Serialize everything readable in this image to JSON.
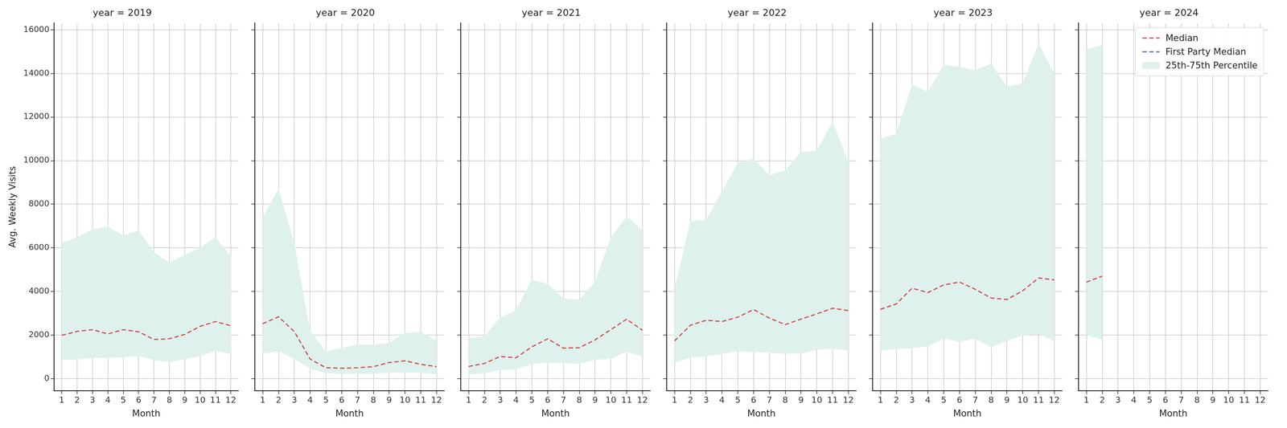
{
  "chart_data": [
    {
      "type": "line",
      "title": "year = 2019",
      "xlabel": "Month",
      "ylabel": "Avg. Weekly Visits",
      "x": [
        1,
        2,
        3,
        4,
        5,
        6,
        7,
        8,
        9,
        10,
        11,
        12
      ],
      "xlim": [
        0.5,
        12.5
      ],
      "xticks": [
        1,
        2,
        3,
        4,
        5,
        6,
        7,
        8,
        9,
        10,
        11,
        12
      ],
      "ylim": [
        -550,
        16300
      ],
      "yticks": [
        0,
        2000,
        4000,
        6000,
        8000,
        10000,
        12000,
        14000,
        16000
      ],
      "grid": true,
      "series": [
        {
          "name": "Median",
          "type": "line",
          "color": "#cc4444",
          "line_style": "dashed",
          "values": [
            1990,
            2170,
            2250,
            2050,
            2250,
            2150,
            1800,
            1830,
            2030,
            2400,
            2620,
            2430
          ]
        },
        {
          "name": "First Party Median",
          "type": "line",
          "color": "#4c5fbf",
          "line_style": "dashed",
          "values": [
            null,
            null,
            null,
            null,
            null,
            null,
            null,
            null,
            null,
            null,
            null,
            null
          ]
        },
        {
          "name": "25th-75th Percentile",
          "type": "area",
          "color": "#dff1ec",
          "lower": [
            870,
            880,
            950,
            960,
            980,
            1050,
            850,
            760,
            900,
            1030,
            1280,
            1130
          ],
          "upper": [
            6230,
            6500,
            6850,
            6980,
            6560,
            6800,
            5800,
            5320,
            5680,
            6000,
            6500,
            5600
          ]
        }
      ]
    },
    {
      "type": "line",
      "title": "year = 2020",
      "xlabel": "Month",
      "tick_labels": "x",
      "x": [
        1,
        2,
        3,
        4,
        5,
        6,
        7,
        8,
        9,
        10,
        11,
        12
      ],
      "xlim": [
        0.5,
        12.5
      ],
      "xticks": [
        1,
        2,
        3,
        4,
        5,
        6,
        7,
        8,
        9,
        10,
        11,
        12
      ],
      "ylim": [
        -550,
        16300
      ],
      "yticks": [
        0,
        2000,
        4000,
        6000,
        8000,
        10000,
        12000,
        14000,
        16000
      ],
      "grid": true,
      "series": [
        {
          "name": "Median",
          "type": "line",
          "color": "#cc4444",
          "line_style": "dashed",
          "values": [
            2520,
            2840,
            2160,
            900,
            500,
            480,
            500,
            550,
            740,
            820,
            660,
            550
          ]
        },
        {
          "name": "First Party Median",
          "type": "line",
          "color": "#4c5fbf",
          "line_style": "dashed",
          "values": [
            null,
            null,
            null,
            null,
            null,
            null,
            null,
            null,
            null,
            null,
            null,
            null
          ]
        },
        {
          "name": "25th-75th Percentile",
          "type": "area",
          "color": "#dff1ec",
          "lower": [
            1150,
            1250,
            920,
            450,
            250,
            220,
            220,
            230,
            270,
            290,
            270,
            200
          ],
          "upper": [
            7400,
            8700,
            6200,
            2200,
            1250,
            1400,
            1580,
            1550,
            1650,
            2100,
            2150,
            1750
          ]
        }
      ]
    },
    {
      "type": "line",
      "title": "year = 2021",
      "xlabel": "Month",
      "tick_labels": "x",
      "x": [
        1,
        2,
        3,
        4,
        5,
        6,
        7,
        8,
        9,
        10,
        11,
        12
      ],
      "xlim": [
        0.5,
        12.5
      ],
      "xticks": [
        1,
        2,
        3,
        4,
        5,
        6,
        7,
        8,
        9,
        10,
        11,
        12
      ],
      "ylim": [
        -550,
        16300
      ],
      "yticks": [
        0,
        2000,
        4000,
        6000,
        8000,
        10000,
        12000,
        14000,
        16000
      ],
      "grid": true,
      "series": [
        {
          "name": "Median",
          "type": "line",
          "color": "#cc4444",
          "line_style": "dashed",
          "values": [
            560,
            700,
            1020,
            960,
            1460,
            1830,
            1400,
            1420,
            1780,
            2250,
            2730,
            2220
          ]
        },
        {
          "name": "First Party Median",
          "type": "line",
          "color": "#4c5fbf",
          "line_style": "dashed",
          "values": [
            null,
            null,
            null,
            null,
            null,
            null,
            null,
            null,
            null,
            null,
            null,
            null
          ]
        },
        {
          "name": "25th-75th Percentile",
          "type": "area",
          "color": "#dff1ec",
          "lower": [
            200,
            240,
            400,
            430,
            680,
            720,
            720,
            680,
            860,
            920,
            1230,
            1030
          ],
          "upper": [
            1850,
            1950,
            2800,
            3150,
            4550,
            4350,
            3680,
            3620,
            4450,
            6480,
            7450,
            6800
          ]
        }
      ]
    },
    {
      "type": "line",
      "title": "year = 2022",
      "xlabel": "Month",
      "tick_labels": "x",
      "x": [
        1,
        2,
        3,
        4,
        5,
        6,
        7,
        8,
        9,
        10,
        11,
        12
      ],
      "xlim": [
        0.5,
        12.5
      ],
      "xticks": [
        1,
        2,
        3,
        4,
        5,
        6,
        7,
        8,
        9,
        10,
        11,
        12
      ],
      "ylim": [
        -550,
        16300
      ],
      "yticks": [
        0,
        2000,
        4000,
        6000,
        8000,
        10000,
        12000,
        14000,
        16000
      ],
      "grid": true,
      "series": [
        {
          "name": "Median",
          "type": "line",
          "color": "#cc4444",
          "line_style": "dashed",
          "values": [
            1730,
            2450,
            2680,
            2620,
            2820,
            3170,
            2780,
            2480,
            2730,
            2970,
            3230,
            3120
          ]
        },
        {
          "name": "First Party Median",
          "type": "line",
          "color": "#4c5fbf",
          "line_style": "dashed",
          "values": [
            null,
            null,
            null,
            null,
            null,
            null,
            null,
            null,
            null,
            null,
            null,
            null
          ]
        },
        {
          "name": "25th-75th Percentile",
          "type": "area",
          "color": "#dff1ec",
          "lower": [
            730,
            960,
            1030,
            1130,
            1250,
            1220,
            1200,
            1140,
            1160,
            1330,
            1380,
            1280
          ],
          "upper": [
            4150,
            7230,
            7280,
            8600,
            9900,
            10100,
            9330,
            9550,
            10400,
            10450,
            11800,
            9950
          ]
        }
      ]
    },
    {
      "type": "line",
      "title": "year = 2023",
      "xlabel": "Month",
      "tick_labels": "x",
      "x": [
        1,
        2,
        3,
        4,
        5,
        6,
        7,
        8,
        9,
        10,
        11,
        12
      ],
      "xlim": [
        0.5,
        12.5
      ],
      "xticks": [
        1,
        2,
        3,
        4,
        5,
        6,
        7,
        8,
        9,
        10,
        11,
        12
      ],
      "ylim": [
        -550,
        16300
      ],
      "yticks": [
        0,
        2000,
        4000,
        6000,
        8000,
        10000,
        12000,
        14000,
        16000
      ],
      "grid": true,
      "series": [
        {
          "name": "Median",
          "type": "line",
          "color": "#cc4444",
          "line_style": "dashed",
          "values": [
            3180,
            3430,
            4150,
            3950,
            4300,
            4430,
            4100,
            3700,
            3630,
            4030,
            4620,
            4530
          ]
        },
        {
          "name": "First Party Median",
          "type": "line",
          "color": "#4c5fbf",
          "line_style": "dashed",
          "values": [
            null,
            null,
            null,
            null,
            null,
            null,
            null,
            null,
            null,
            null,
            null,
            null
          ]
        },
        {
          "name": "25th-75th Percentile",
          "type": "area",
          "color": "#dff1ec",
          "lower": [
            1280,
            1360,
            1400,
            1480,
            1830,
            1700,
            1830,
            1450,
            1740,
            1980,
            2050,
            1720
          ],
          "upper": [
            11000,
            11250,
            13480,
            13150,
            14400,
            14300,
            14150,
            14450,
            13400,
            13550,
            15370,
            14000
          ]
        }
      ]
    },
    {
      "type": "line",
      "title": "year = 2024",
      "xlabel": "Month",
      "tick_labels": "x",
      "legend": "upper right",
      "x": [
        1,
        2,
        3,
        4,
        5,
        6,
        7,
        8,
        9,
        10,
        11,
        12
      ],
      "xlim": [
        0.5,
        12.5
      ],
      "xticks": [
        1,
        2,
        3,
        4,
        5,
        6,
        7,
        8,
        9,
        10,
        11,
        12
      ],
      "ylim": [
        -550,
        16300
      ],
      "yticks": [
        0,
        2000,
        4000,
        6000,
        8000,
        10000,
        12000,
        14000,
        16000
      ],
      "grid": true,
      "series": [
        {
          "name": "Median",
          "type": "line",
          "color": "#cc4444",
          "line_style": "dashed",
          "values": [
            4430,
            4700,
            null,
            null,
            null,
            null,
            null,
            null,
            null,
            null,
            null,
            null
          ]
        },
        {
          "name": "First Party Median",
          "type": "line",
          "color": "#4c5fbf",
          "line_style": "dashed",
          "values": [
            null,
            null,
            null,
            null,
            null,
            null,
            null,
            null,
            null,
            null,
            null,
            null
          ]
        },
        {
          "name": "25th-75th Percentile",
          "type": "area",
          "color": "#dff1ec",
          "lower": [
            2000,
            1800,
            null,
            null,
            null,
            null,
            null,
            null,
            null,
            null,
            null,
            null
          ],
          "upper": [
            15100,
            15300,
            null,
            null,
            null,
            null,
            null,
            null,
            null,
            null,
            null,
            null
          ]
        }
      ]
    }
  ]
}
